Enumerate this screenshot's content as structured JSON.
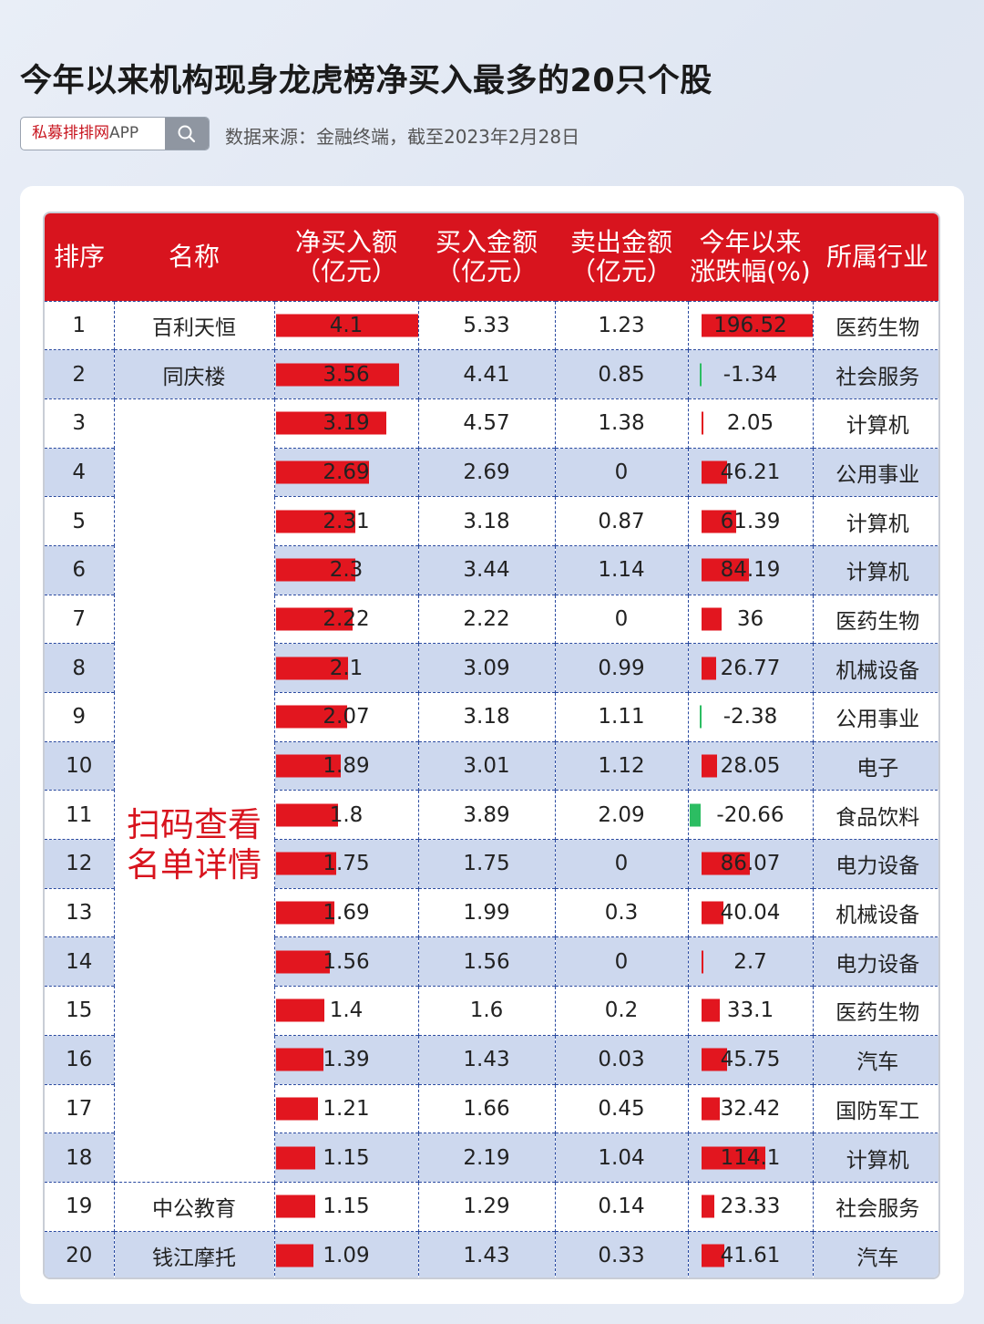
{
  "title": "今年以来机构现身龙虎榜净买入最多的20只个股",
  "search": {
    "brand": "私募排排网",
    "suffix": "APP"
  },
  "source": "数据来源：金融终端，截至2023年2月28日",
  "headers": {
    "rank": "排序",
    "name": "名称",
    "net_line1": "净买入额",
    "net_line2": "（亿元）",
    "buy_line1": "买入金额",
    "buy_line2": "（亿元）",
    "sell_line1": "卖出金额",
    "sell_line2": "（亿元）",
    "chg_line1": "今年以来",
    "chg_line2": "涨跌幅(%)",
    "industry": "所属行业"
  },
  "merged_label_line1": "扫码查看",
  "merged_label_line2": "名单详情",
  "colors": {
    "header_red": "#d8141e",
    "bar_red": "#e2161f",
    "bar_green": "#2cbd62",
    "stripe": "#cdd8ee"
  },
  "rows": [
    {
      "rank": "1",
      "name": "百利天恒",
      "net": "4.1",
      "buy": "5.33",
      "sell": "1.23",
      "chg": "196.52",
      "industry": "医药生物"
    },
    {
      "rank": "2",
      "name": "同庆楼",
      "net": "3.56",
      "buy": "4.41",
      "sell": "0.85",
      "chg": "-1.34",
      "industry": "社会服务"
    },
    {
      "rank": "3",
      "name": "",
      "net": "3.19",
      "buy": "4.57",
      "sell": "1.38",
      "chg": "2.05",
      "industry": "计算机"
    },
    {
      "rank": "4",
      "name": "",
      "net": "2.69",
      "buy": "2.69",
      "sell": "0",
      "chg": "46.21",
      "industry": "公用事业"
    },
    {
      "rank": "5",
      "name": "",
      "net": "2.31",
      "buy": "3.18",
      "sell": "0.87",
      "chg": "61.39",
      "industry": "计算机"
    },
    {
      "rank": "6",
      "name": "",
      "net": "2.3",
      "buy": "3.44",
      "sell": "1.14",
      "chg": "84.19",
      "industry": "计算机"
    },
    {
      "rank": "7",
      "name": "",
      "net": "2.22",
      "buy": "2.22",
      "sell": "0",
      "chg": "36",
      "industry": "医药生物"
    },
    {
      "rank": "8",
      "name": "",
      "net": "2.1",
      "buy": "3.09",
      "sell": "0.99",
      "chg": "26.77",
      "industry": "机械设备"
    },
    {
      "rank": "9",
      "name": "",
      "net": "2.07",
      "buy": "3.18",
      "sell": "1.11",
      "chg": "-2.38",
      "industry": "公用事业"
    },
    {
      "rank": "10",
      "name": "",
      "net": "1.89",
      "buy": "3.01",
      "sell": "1.12",
      "chg": "28.05",
      "industry": "电子"
    },
    {
      "rank": "11",
      "name": "",
      "net": "1.8",
      "buy": "3.89",
      "sell": "2.09",
      "chg": "-20.66",
      "industry": "食品饮料"
    },
    {
      "rank": "12",
      "name": "",
      "net": "1.75",
      "buy": "1.75",
      "sell": "0",
      "chg": "86.07",
      "industry": "电力设备"
    },
    {
      "rank": "13",
      "name": "",
      "net": "1.69",
      "buy": "1.99",
      "sell": "0.3",
      "chg": "40.04",
      "industry": "机械设备"
    },
    {
      "rank": "14",
      "name": "",
      "net": "1.56",
      "buy": "1.56",
      "sell": "0",
      "chg": "2.7",
      "industry": "电力设备"
    },
    {
      "rank": "15",
      "name": "",
      "net": "1.4",
      "buy": "1.6",
      "sell": "0.2",
      "chg": "33.1",
      "industry": "医药生物"
    },
    {
      "rank": "16",
      "name": "",
      "net": "1.39",
      "buy": "1.43",
      "sell": "0.03",
      "chg": "45.75",
      "industry": "汽车"
    },
    {
      "rank": "17",
      "name": "",
      "net": "1.21",
      "buy": "1.66",
      "sell": "0.45",
      "chg": "32.42",
      "industry": "国防军工"
    },
    {
      "rank": "18",
      "name": "",
      "net": "1.15",
      "buy": "2.19",
      "sell": "1.04",
      "chg": "114.1",
      "industry": "计算机"
    },
    {
      "rank": "19",
      "name": "中公教育",
      "net": "1.15",
      "buy": "1.29",
      "sell": "0.14",
      "chg": "23.33",
      "industry": "社会服务"
    },
    {
      "rank": "20",
      "name": "钱江摩托",
      "net": "1.09",
      "buy": "1.43",
      "sell": "0.33",
      "chg": "41.61",
      "industry": "汽车"
    }
  ]
}
